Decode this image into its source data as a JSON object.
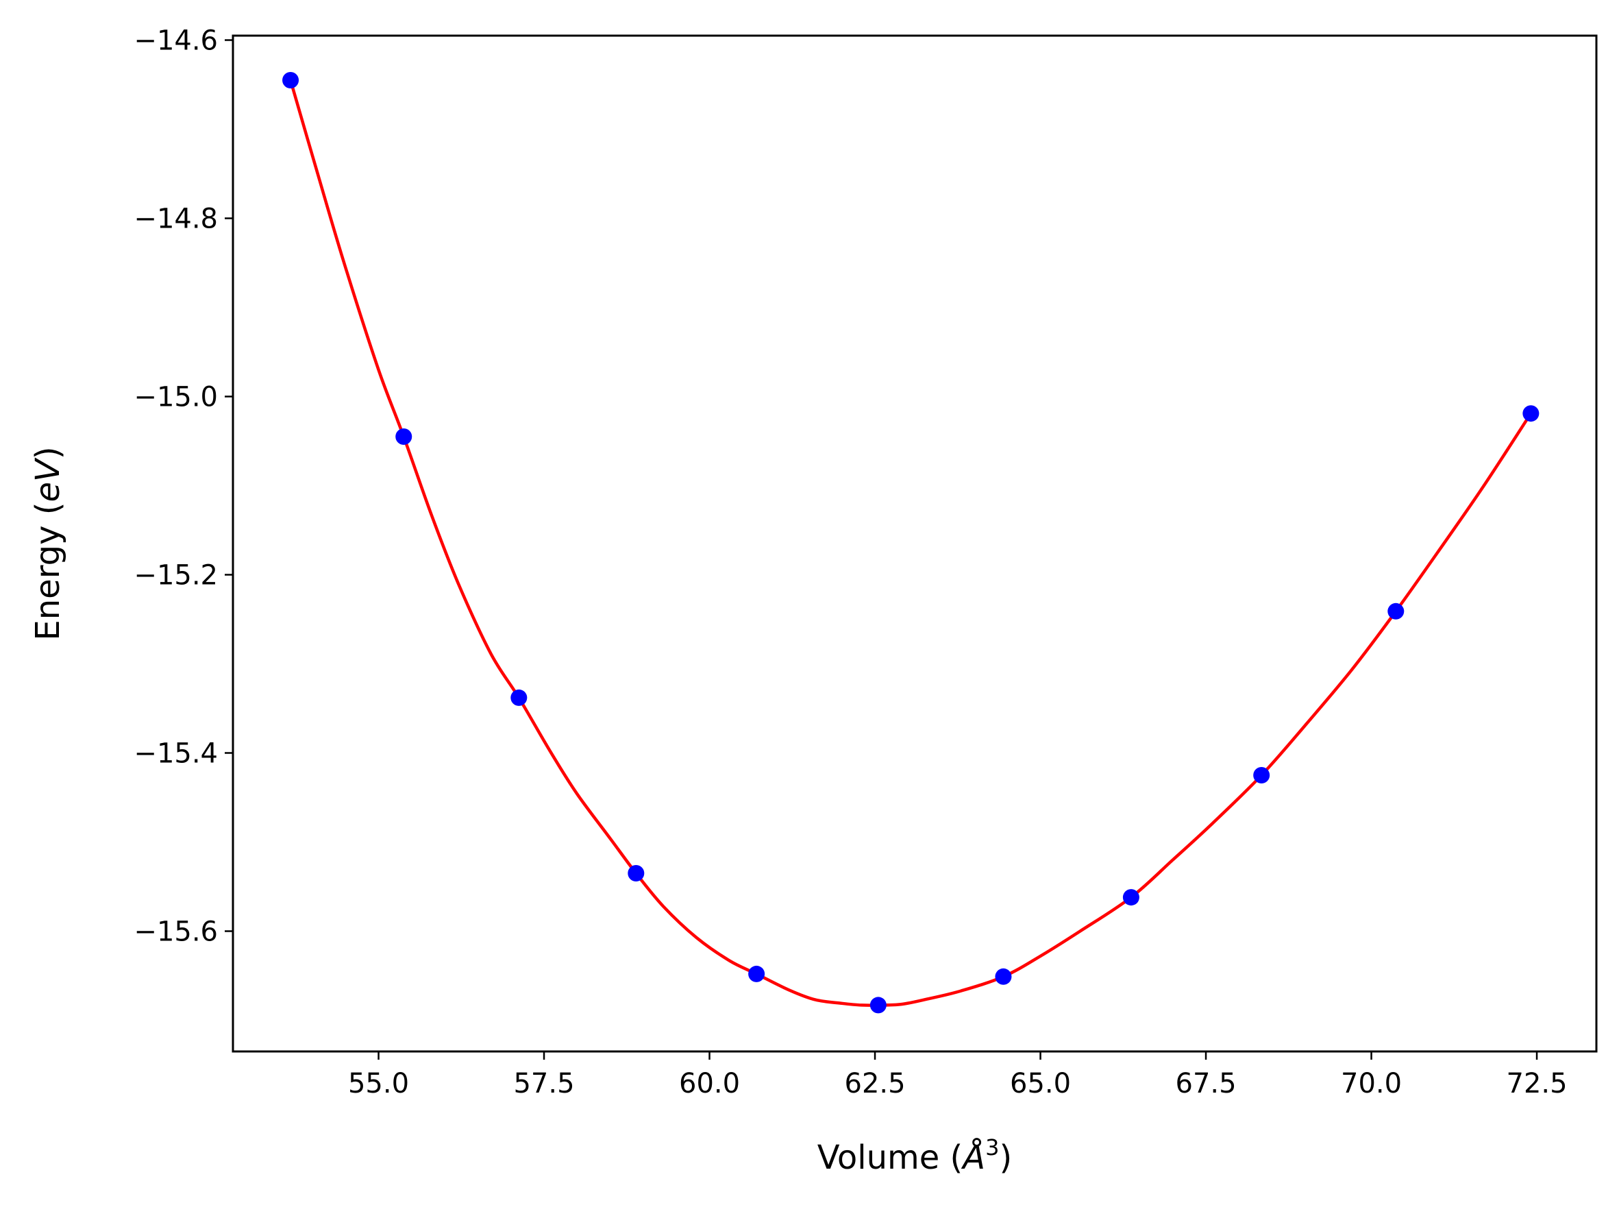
{
  "chart_data": {
    "type": "line",
    "title": "",
    "xlabel": {
      "prefix": "Volume (",
      "unit": "Å",
      "exponent": "3",
      "suffix": ")"
    },
    "ylabel": {
      "prefix": "Energy (",
      "unit": "eV",
      "suffix": ")"
    },
    "xlim": [
      52.8,
      73.4
    ],
    "ylim": [
      -15.735,
      -14.595
    ],
    "xticks": [
      55.0,
      57.5,
      60.0,
      62.5,
      65.0,
      67.5,
      70.0,
      72.5
    ],
    "xtick_labels": [
      "55.0",
      "57.5",
      "60.0",
      "62.5",
      "65.0",
      "67.5",
      "70.0",
      "72.5"
    ],
    "yticks": [
      -14.6,
      -14.8,
      -15.0,
      -15.2,
      -15.4,
      -15.6
    ],
    "ytick_labels": [
      "−14.6",
      "−14.8",
      "−15.0",
      "−15.2",
      "−15.4",
      "−15.6"
    ],
    "grid": false,
    "series": [
      {
        "kind": "points",
        "color": "#0000ff",
        "x": [
          53.67,
          55.38,
          57.12,
          58.89,
          60.71,
          62.55,
          64.44,
          66.37,
          68.34,
          70.37,
          72.41
        ],
        "y": [
          -14.645,
          -15.045,
          -15.338,
          -15.535,
          -15.648,
          -15.683,
          -15.651,
          -15.562,
          -15.425,
          -15.241,
          -15.019
        ]
      },
      {
        "kind": "fit-curve",
        "color": "#ff0000",
        "x": [
          53.67,
          54.1,
          54.5,
          55.0,
          55.38,
          55.8,
          56.2,
          56.7,
          57.12,
          57.6,
          58.0,
          58.5,
          58.89,
          59.3,
          59.8,
          60.3,
          60.71,
          61.2,
          61.6,
          62.0,
          62.3,
          62.55,
          62.9,
          63.3,
          63.8,
          64.44,
          65.0,
          65.6,
          66.37,
          67.0,
          67.6,
          68.34,
          69.0,
          69.7,
          70.37,
          71.0,
          71.7,
          72.41
        ],
        "y": [
          -14.645,
          -14.755,
          -14.855,
          -14.97,
          -15.045,
          -15.133,
          -15.209,
          -15.289,
          -15.338,
          -15.399,
          -15.446,
          -15.496,
          -15.535,
          -15.572,
          -15.607,
          -15.633,
          -15.648,
          -15.666,
          -15.677,
          -15.681,
          -15.683,
          -15.683,
          -15.682,
          -15.676,
          -15.667,
          -15.651,
          -15.628,
          -15.6,
          -15.562,
          -15.52,
          -15.479,
          -15.425,
          -15.369,
          -15.307,
          -15.241,
          -15.175,
          -15.1,
          -15.019
        ]
      }
    ]
  }
}
